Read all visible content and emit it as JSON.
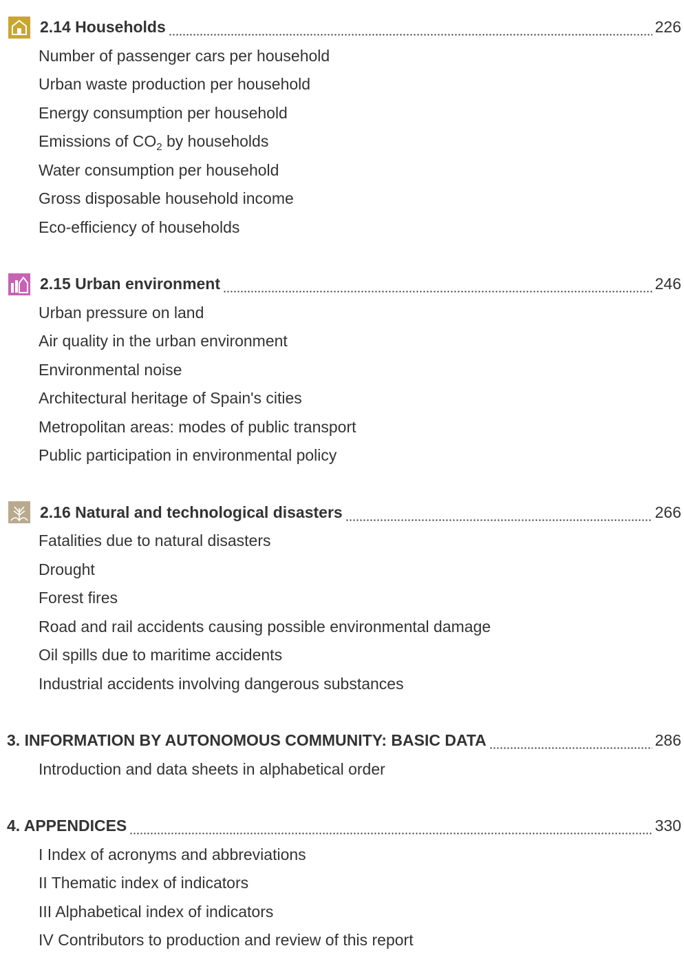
{
  "sections": [
    {
      "icon": "household",
      "color": "#c9a631",
      "title": "2.14 Households",
      "page": "226",
      "items": [
        "Number of passenger cars per household",
        "Urban waste production per household",
        "Energy consumption per household",
        {
          "parts": [
            "Emissions of CO",
            "2",
            "by households"
          ]
        },
        "Water consumption per household",
        "Gross disposable household income",
        "Eco-efficiency of households"
      ]
    },
    {
      "icon": "urban",
      "color": "#c862b4",
      "title": "2.15 Urban environment",
      "page": "246",
      "items": [
        "Urban pressure on land",
        "Air quality in the urban environment",
        "Environmental noise",
        "Architectural heritage of Spain's cities",
        "Metropolitan areas: modes of public transport",
        "Public participation in environmental policy"
      ]
    },
    {
      "icon": "disaster",
      "color": "#b9aa8e",
      "title": "2.16 Natural and technological disasters",
      "page": "266",
      "items": [
        "Fatalities due to natural disasters",
        "Drought",
        "Forest fires",
        "Road and rail accidents causing possible environmental damage",
        "Oil spills due to maritime accidents",
        "Industrial accidents involving dangerous substances"
      ]
    },
    {
      "title": "3. INFORMATION BY AUTONOMOUS COMMUNITY: BASIC DATA",
      "page": "286",
      "items": [
        "Introduction and data sheets in alphabetical order"
      ]
    },
    {
      "title": "4. APPENDICES",
      "page": "330",
      "items": [
        "I Index of acronyms and abbreviations",
        "II Thematic index of indicators",
        "III Alphabetical index of indicators",
        "IV Contributors to production and review of this report"
      ]
    }
  ]
}
